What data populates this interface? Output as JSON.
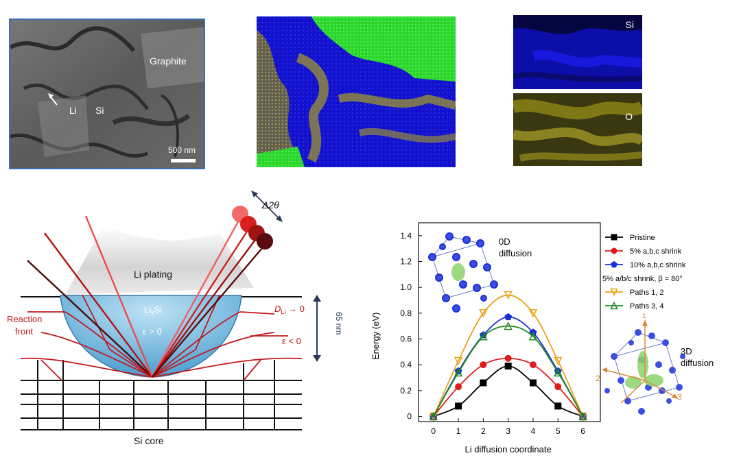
{
  "sem": {
    "graphite": "Graphite",
    "li": "Li",
    "si": "Si",
    "scale": "500 nm"
  },
  "maps": {
    "si_label": "Si",
    "o_label": "O",
    "si_color": "#1010d8",
    "o_color": "#8c8216",
    "graphite_color": "#2ed52e"
  },
  "schematic": {
    "d2theta": "Δ2θ",
    "plating": "Li plating",
    "lixsi_main": "Li",
    "lixsi_sub": "x",
    "lixsi_end": "Si",
    "eps_pos": "ε > 0",
    "eps_neg": "ε < 0",
    "dli_main": "D",
    "dli_sub": "Li",
    "dli_end": " → 0",
    "reaction1": "Reaction",
    "reaction2": "front",
    "depth": "65 nm",
    "core": "Si core"
  },
  "insets": {
    "od1": "0D",
    "od2": "diffusion",
    "td1": "3D",
    "td2": "diffusion",
    "ax1": "1",
    "ax2": "2",
    "ax3": "3"
  },
  "chart_data": {
    "type": "line",
    "xlabel": "Li diffusion coordinate",
    "ylabel": "Energy (eV)",
    "xlim": [
      -0.6,
      6.7
    ],
    "ylim": [
      -0.04,
      1.5
    ],
    "xticks": [
      0,
      1,
      2,
      3,
      4,
      5,
      6
    ],
    "yticks": [
      0,
      0.2,
      0.4,
      0.6,
      0.8,
      1.0,
      1.2,
      1.4
    ],
    "ytick_labels": [
      "0",
      "0.2",
      "0.4",
      "0.6",
      "0.8",
      "1.0",
      "1.2",
      "1.4"
    ],
    "x": [
      0,
      1,
      2,
      3,
      4,
      5,
      6
    ],
    "legend_group_title": "5% a/b/c shrink, β = 80°",
    "series": [
      {
        "name": "Pristine",
        "color": "#000000",
        "marker": "square",
        "values": [
          0,
          0.08,
          0.26,
          0.39,
          0.26,
          0.08,
          0
        ]
      },
      {
        "name": "5% a,b,c shrink",
        "color": "#e01b1b",
        "marker": "circle",
        "values": [
          0,
          0.23,
          0.4,
          0.45,
          0.4,
          0.23,
          0
        ]
      },
      {
        "name": "10% a,b,c shrink",
        "color": "#1c2fd6",
        "marker": "pentagon",
        "values": [
          0,
          0.35,
          0.63,
          0.77,
          0.65,
          0.35,
          0
        ]
      },
      {
        "name": "Paths 1, 2",
        "color": "#e8a317",
        "marker": "triangle-down",
        "values": [
          0,
          0.43,
          0.8,
          0.94,
          0.8,
          0.43,
          0
        ]
      },
      {
        "name": "Paths 3, 4",
        "color": "#1e8a1e",
        "marker": "triangle-up",
        "values": [
          0,
          0.34,
          0.62,
          0.7,
          0.62,
          0.34,
          0
        ]
      }
    ]
  }
}
